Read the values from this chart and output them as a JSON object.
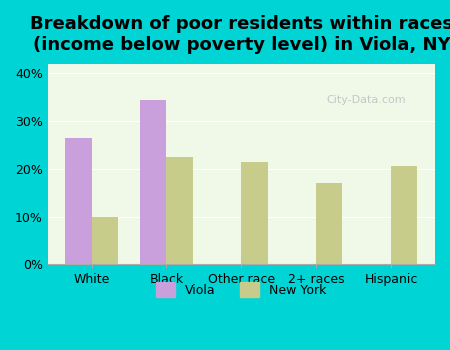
{
  "title": "Breakdown of poor residents within races\n(income below poverty level) in Viola, NY",
  "categories": [
    "White",
    "Black",
    "Other race",
    "2+ races",
    "Hispanic"
  ],
  "viola_values": [
    26.5,
    34.5,
    0,
    0,
    0
  ],
  "newyork_values": [
    10.0,
    22.5,
    21.5,
    17.0,
    20.5
  ],
  "viola_color": "#c9a0dc",
  "newyork_color": "#c8cc8a",
  "bg_outer": "#00d4d4",
  "bg_plot": "#f0f8e8",
  "ylim": [
    0,
    42
  ],
  "yticks": [
    0,
    10,
    20,
    30,
    40
  ],
  "ytick_labels": [
    "0%",
    "10%",
    "20%",
    "30%",
    "40%"
  ],
  "bar_width": 0.35,
  "title_fontsize": 13,
  "legend_labels": [
    "Viola",
    "New York"
  ]
}
